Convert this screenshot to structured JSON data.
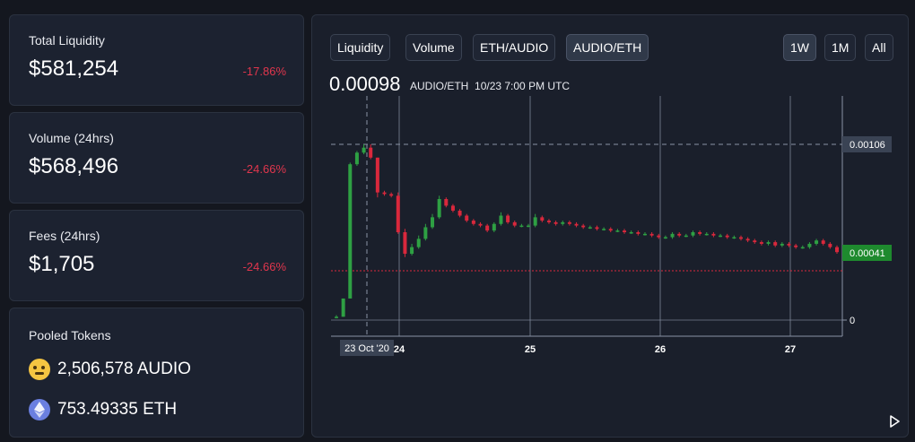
{
  "stats": [
    {
      "label": "Total Liquidity",
      "value": "$581,254",
      "change": "-17.86%"
    },
    {
      "label": "Volume (24hrs)",
      "value": "$568,496",
      "change": "-24.66%"
    },
    {
      "label": "Fees (24hrs)",
      "value": "$1,705",
      "change": "-24.66%"
    }
  ],
  "pooled": {
    "title": "Pooled Tokens",
    "tokens": [
      {
        "amount": "2,506,578 AUDIO",
        "icon": "audio-emoji-icon"
      },
      {
        "amount": "753.49335 ETH",
        "icon": "ethereum-icon"
      }
    ]
  },
  "chart_tabs": [
    "Liquidity",
    "Volume",
    "ETH/AUDIO",
    "AUDIO/ETH"
  ],
  "active_tab": "AUDIO/ETH",
  "ranges": [
    "1W",
    "1M",
    "All"
  ],
  "active_range": "1W",
  "price": {
    "value": "0.00098",
    "pair": "AUDIO/ETH",
    "time": "10/23 7:00 PM UTC"
  },
  "colors": {
    "up": "#2ea043",
    "down": "#d9283c",
    "negative": "#e0364d"
  },
  "chart_data": {
    "type": "candlestick",
    "x_ticks": [
      "24",
      "25",
      "26",
      "27"
    ],
    "crosshair_x_label": "23 Oct '20",
    "y_labels": [
      "0.00106",
      "0.00041",
      "0"
    ],
    "crosshair_y": 0.00106,
    "last_price": 0.00041,
    "ylim": [
      0,
      0.00115
    ],
    "candles": [
      [
        2e-05,
        3e-05,
        1e-05,
        2e-05
      ],
      [
        2e-05,
        0.00013,
        2e-05,
        0.00013
      ],
      [
        0.00013,
        0.00095,
        0.00013,
        0.00094
      ],
      [
        0.00094,
        0.00102,
        0.00093,
        0.00101
      ],
      [
        0.00101,
        0.00106,
        0.001,
        0.00104
      ],
      [
        0.00104,
        0.00106,
        0.00097,
        0.00098
      ],
      [
        0.00098,
        0.00098,
        0.00074,
        0.00077
      ],
      [
        0.00077,
        0.00078,
        0.00075,
        0.00076
      ],
      [
        0.00076,
        0.00077,
        0.00074,
        0.00075
      ],
      [
        0.00075,
        0.00077,
        0.00052,
        0.00053
      ],
      [
        0.00053,
        0.00055,
        0.00038,
        0.0004
      ],
      [
        0.0004,
        0.00046,
        0.00039,
        0.00044
      ],
      [
        0.00044,
        0.00051,
        0.00043,
        0.00049
      ],
      [
        0.00049,
        0.00058,
        0.00048,
        0.00056
      ],
      [
        0.00056,
        0.00064,
        0.00055,
        0.00062
      ],
      [
        0.00062,
        0.00075,
        0.00061,
        0.00073
      ],
      [
        0.00073,
        0.00074,
        0.00068,
        0.00069
      ],
      [
        0.00069,
        0.0007,
        0.00065,
        0.00066
      ],
      [
        0.00066,
        0.00067,
        0.00062,
        0.00063
      ],
      [
        0.00063,
        0.00064,
        0.00059,
        0.0006
      ],
      [
        0.0006,
        0.00061,
        0.00057,
        0.00058
      ],
      [
        0.00058,
        0.00059,
        0.00056,
        0.00057
      ],
      [
        0.00057,
        0.00058,
        0.00053,
        0.00054
      ],
      [
        0.00054,
        0.00059,
        0.00053,
        0.00058
      ],
      [
        0.00058,
        0.00065,
        0.00057,
        0.00063
      ],
      [
        0.00063,
        0.00064,
        0.00058,
        0.00059
      ],
      [
        0.00059,
        0.0006,
        0.00056,
        0.00057
      ],
      [
        0.00057,
        0.00058,
        0.00056,
        0.00057
      ],
      [
        0.00057,
        0.00058,
        0.00056,
        0.00057
      ],
      [
        0.00057,
        0.00064,
        0.00056,
        0.00062
      ],
      [
        0.00062,
        0.00063,
        0.00059,
        0.0006
      ],
      [
        0.0006,
        0.00061,
        0.00058,
        0.00059
      ],
      [
        0.00059,
        0.0006,
        0.00057,
        0.00058
      ],
      [
        0.00058,
        0.0006,
        0.00057,
        0.00059
      ],
      [
        0.00059,
        0.0006,
        0.00057,
        0.00058
      ],
      [
        0.00058,
        0.00059,
        0.00056,
        0.00057
      ],
      [
        0.00057,
        0.00058,
        0.00055,
        0.00056
      ],
      [
        0.00056,
        0.00057,
        0.00055,
        0.00056
      ],
      [
        0.00056,
        0.00057,
        0.00054,
        0.00055
      ],
      [
        0.00055,
        0.00056,
        0.00054,
        0.00055
      ],
      [
        0.00055,
        0.00056,
        0.00053,
        0.00054
      ],
      [
        0.00054,
        0.00055,
        0.00053,
        0.00054
      ],
      [
        0.00054,
        0.00055,
        0.00052,
        0.00053
      ],
      [
        0.00053,
        0.00054,
        0.00052,
        0.00053
      ],
      [
        0.00053,
        0.00054,
        0.00051,
        0.00052
      ],
      [
        0.00052,
        0.00053,
        0.00051,
        0.00052
      ],
      [
        0.00052,
        0.00053,
        0.0005,
        0.00051
      ],
      [
        0.00051,
        0.00052,
        0.00049,
        0.0005
      ],
      [
        0.0005,
        0.00051,
        0.00049,
        0.0005
      ],
      [
        0.0005,
        0.00053,
        0.00049,
        0.00052
      ],
      [
        0.00052,
        0.00053,
        0.0005,
        0.00051
      ],
      [
        0.00051,
        0.00052,
        0.0005,
        0.00051
      ],
      [
        0.00051,
        0.00054,
        0.0005,
        0.00053
      ],
      [
        0.00053,
        0.00054,
        0.00051,
        0.00052
      ],
      [
        0.00052,
        0.00053,
        0.00051,
        0.00052
      ],
      [
        0.00052,
        0.00053,
        0.0005,
        0.00051
      ],
      [
        0.00051,
        0.00052,
        0.0005,
        0.00051
      ],
      [
        0.00051,
        0.00052,
        0.00049,
        0.0005
      ],
      [
        0.0005,
        0.00051,
        0.00049,
        0.0005
      ],
      [
        0.0005,
        0.00051,
        0.00048,
        0.00049
      ],
      [
        0.00049,
        0.0005,
        0.00047,
        0.00048
      ],
      [
        0.00048,
        0.00049,
        0.00046,
        0.00047
      ],
      [
        0.00047,
        0.00048,
        0.00045,
        0.00046
      ],
      [
        0.00046,
        0.00048,
        0.00045,
        0.00047
      ],
      [
        0.00047,
        0.00048,
        0.00044,
        0.00045
      ],
      [
        0.00045,
        0.00047,
        0.00044,
        0.00046
      ],
      [
        0.00046,
        0.00047,
        0.00044,
        0.00045
      ],
      [
        0.00045,
        0.00046,
        0.00043,
        0.00044
      ],
      [
        0.00044,
        0.00045,
        0.00043,
        0.00044
      ],
      [
        0.00044,
        0.00047,
        0.00043,
        0.00046
      ],
      [
        0.00046,
        0.00049,
        0.00045,
        0.00048
      ],
      [
        0.00048,
        0.00049,
        0.00045,
        0.00046
      ],
      [
        0.00046,
        0.00047,
        0.00043,
        0.00044
      ],
      [
        0.00044,
        0.00045,
        0.0004,
        0.00041
      ]
    ]
  }
}
